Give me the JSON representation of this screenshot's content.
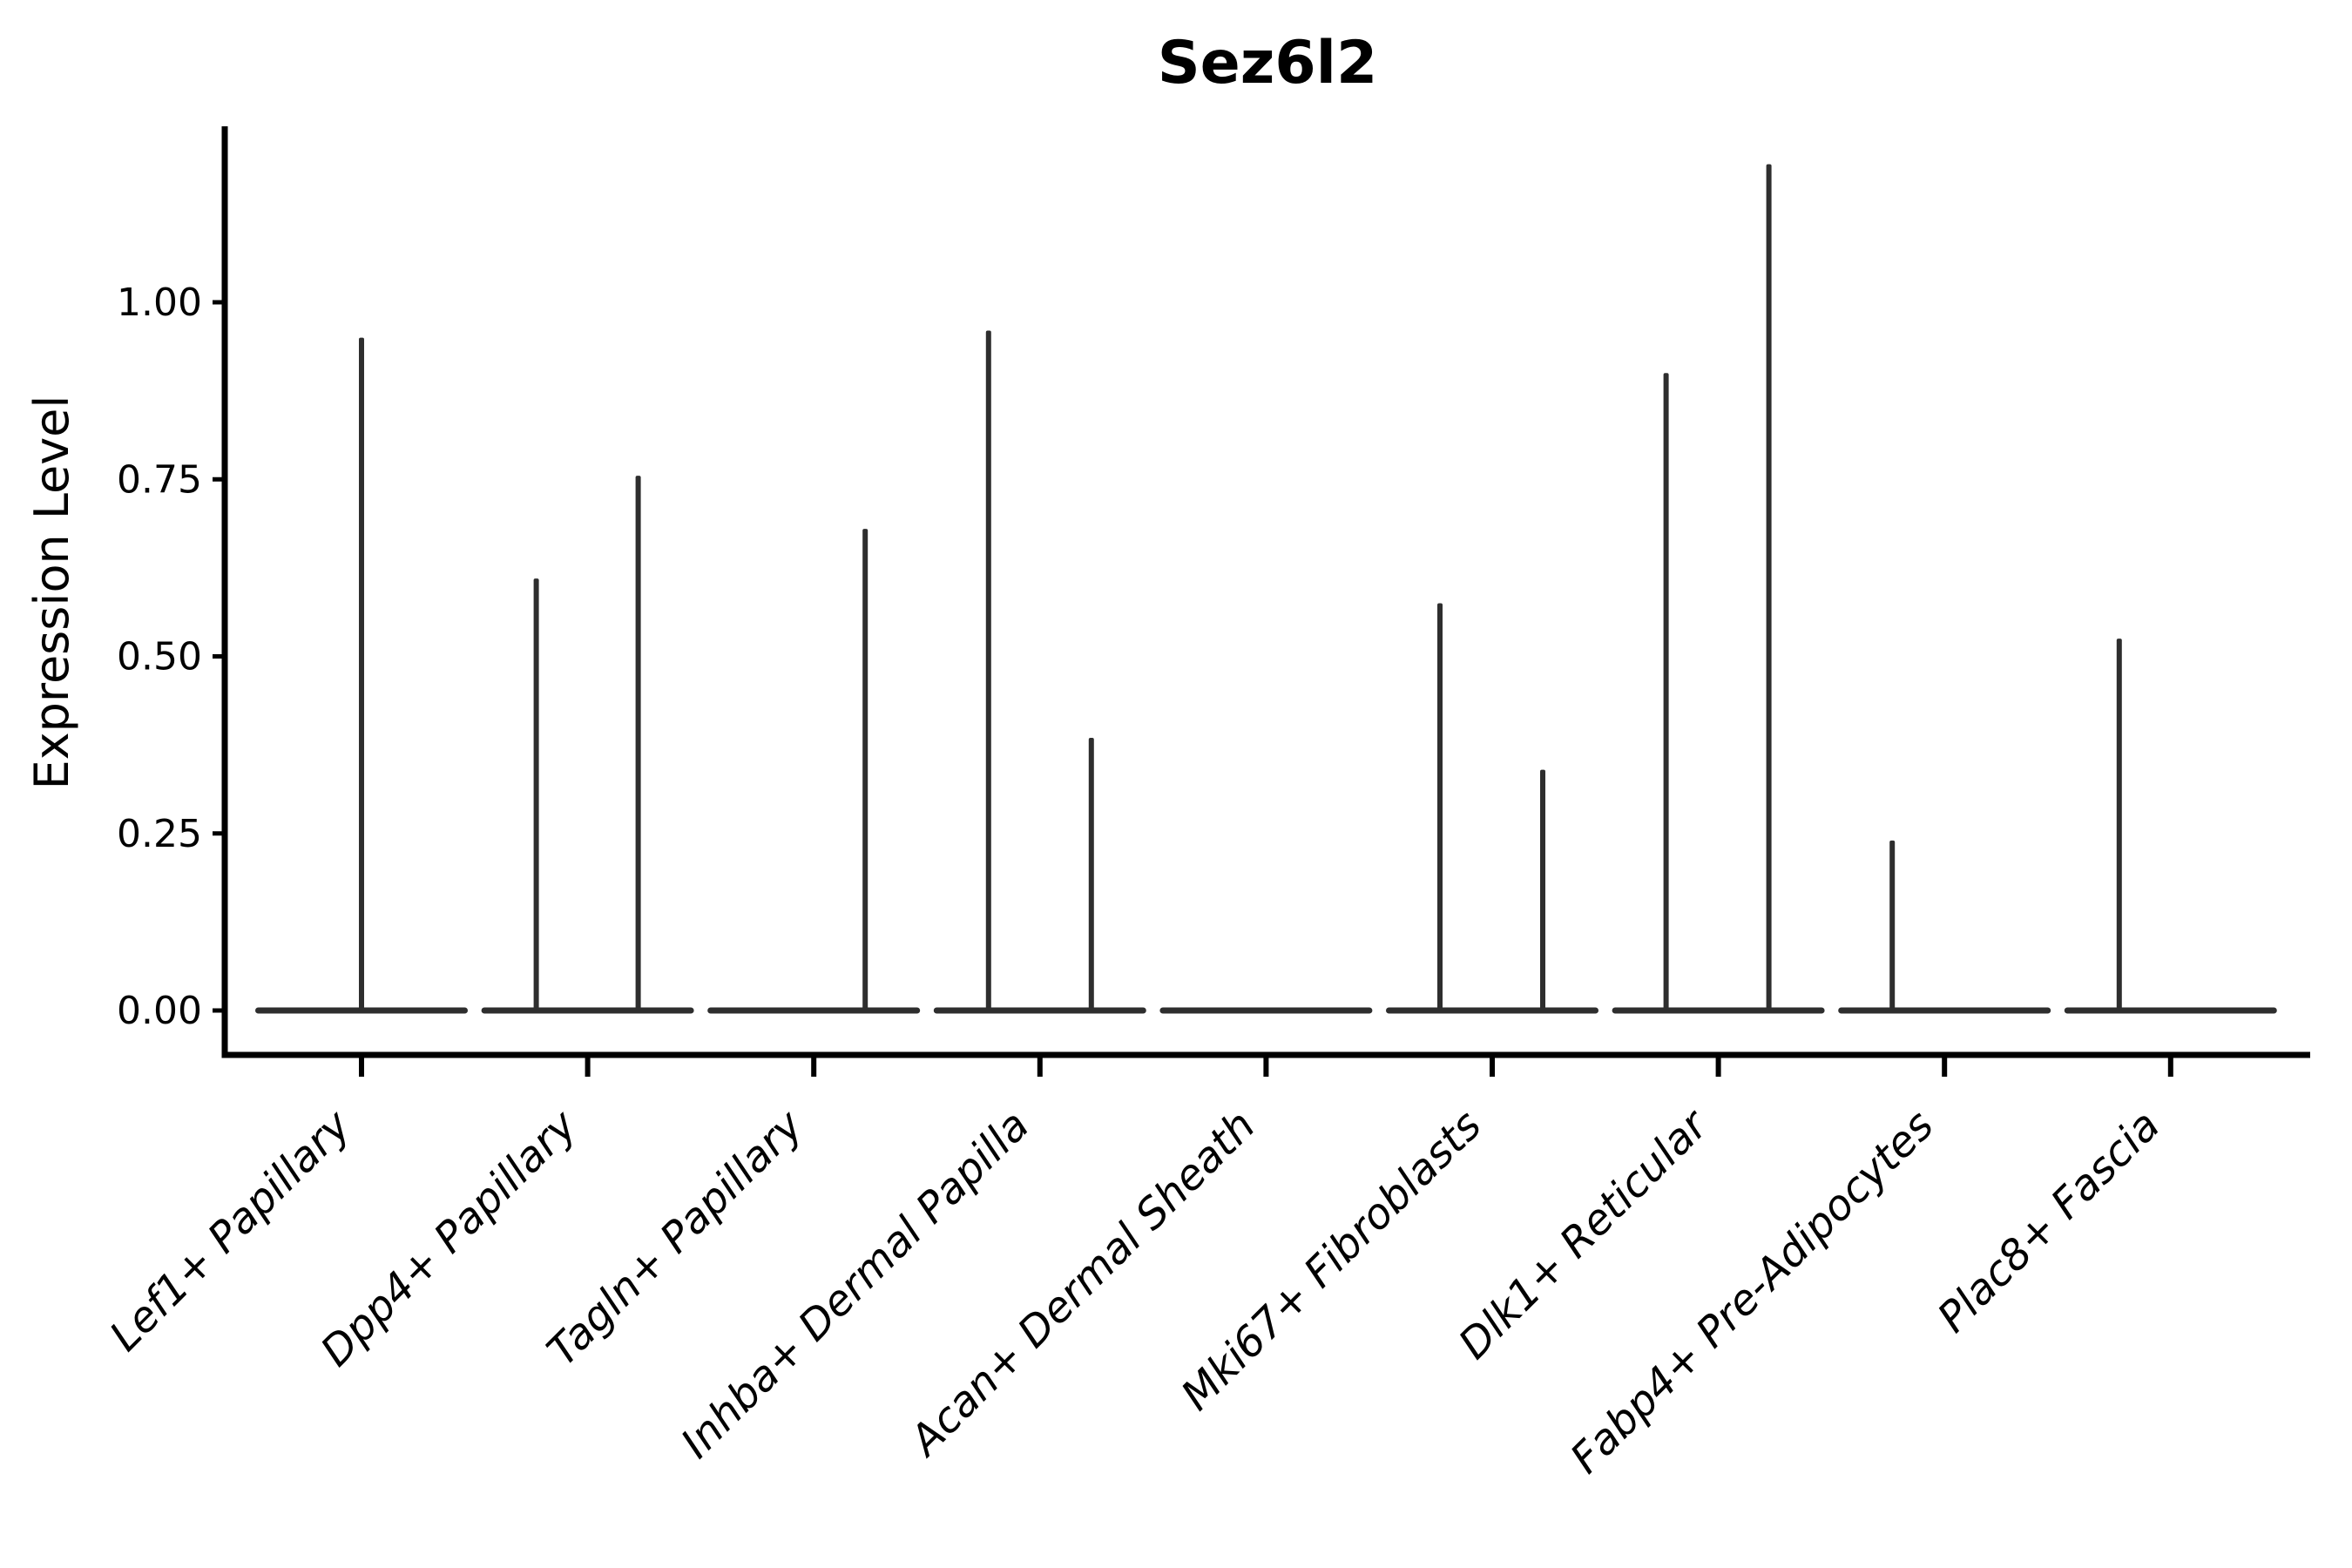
{
  "chart_data": {
    "type": "violin",
    "title": "Sez6l2",
    "xlabel": "",
    "ylabel": "Expression Level",
    "ylim": [
      0,
      1.25
    ],
    "yticks": [
      0.0,
      0.25,
      0.5,
      0.75,
      1.0
    ],
    "ytick_labels": [
      "0.00",
      "0.25",
      "0.50",
      "0.75",
      "1.00"
    ],
    "grid": false,
    "legend": "none",
    "background": "#ffffff",
    "axis_color": "#000000",
    "violin_color": "#2e2e2e",
    "categories": [
      "Lef1+ Papillary",
      "Dpp4+ Papillary",
      "Tagln+ Papillary",
      "Inhba+ Dermal Papilla",
      "Acan+ Dermal Sheath",
      "Mki67+ Fibroblasts",
      "Dlk1+ Reticular",
      "Fabp4+ Pre-Adipocytes",
      "Plac8+ Fascia"
    ],
    "violins": [
      {
        "category": "Lef1+ Papillary",
        "baseline_value": 0.0,
        "spikes": [
          {
            "offset": 0,
            "value": 0.95
          }
        ]
      },
      {
        "category": "Dpp4+ Papillary",
        "baseline_value": 0.0,
        "spikes": [
          {
            "offset": -59,
            "value": 0.61
          },
          {
            "offset": 58,
            "value": 0.755
          }
        ]
      },
      {
        "category": "Tagln+ Papillary",
        "baseline_value": 0.0,
        "spikes": [
          {
            "offset": 59,
            "value": 0.68
          }
        ]
      },
      {
        "category": "Inhba+ Dermal Papilla",
        "baseline_value": 0.0,
        "spikes": [
          {
            "offset": -59,
            "value": 0.96
          },
          {
            "offset": 59,
            "value": 0.385
          }
        ]
      },
      {
        "category": "Acan+ Dermal Sheath",
        "baseline_value": 0.0,
        "spikes": []
      },
      {
        "category": "Mki67+ Fibroblasts",
        "baseline_value": 0.0,
        "spikes": [
          {
            "offset": -60,
            "value": 0.575
          },
          {
            "offset": 58,
            "value": 0.34
          }
        ]
      },
      {
        "category": "Dlk1+ Reticular",
        "baseline_value": 0.0,
        "spikes": [
          {
            "offset": -60,
            "value": 0.9
          },
          {
            "offset": 58,
            "value": 1.195
          }
        ]
      },
      {
        "category": "Fabp4+ Pre-Adipocytes",
        "baseline_value": 0.0,
        "spikes": [
          {
            "offset": -60,
            "value": 0.24
          }
        ]
      },
      {
        "category": "Plac8+ Fascia",
        "baseline_value": 0.0,
        "spikes": [
          {
            "offset": -59,
            "value": 0.525
          }
        ]
      }
    ]
  }
}
